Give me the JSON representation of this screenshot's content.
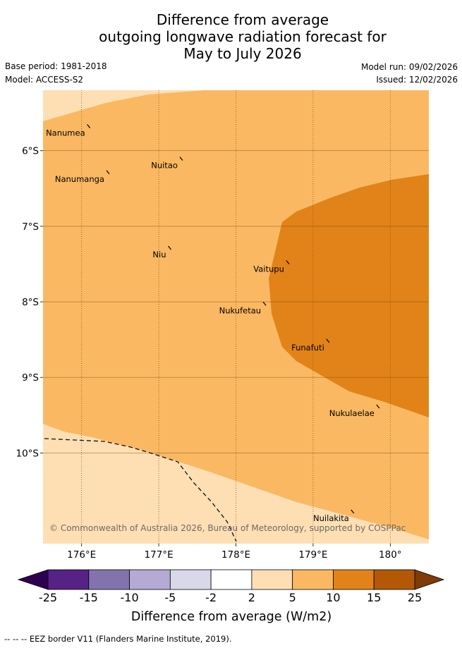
{
  "title": {
    "line1": "Difference from average",
    "line2": "outgoing longwave radiation forecast for",
    "line3": "May to July 2026"
  },
  "meta": {
    "base_period": "Base period: 1981-2018",
    "model": "Model: ACCESS-S2",
    "model_run": "Model run: 09/02/2026",
    "issued": "Issued: 12/02/2026"
  },
  "map": {
    "lon_range": [
      175.5,
      180.5
    ],
    "lat_range": [
      -11.2,
      -5.2
    ],
    "copyright": "© Commonwealth of Australia 2026, Bureau of Meteorology, supported by COSPPac",
    "x_ticks": [
      {
        "value": 176,
        "label": "176°E"
      },
      {
        "value": 177,
        "label": "177°E"
      },
      {
        "value": 178,
        "label": "178°E"
      },
      {
        "value": 179,
        "label": "179°E"
      },
      {
        "value": 180,
        "label": "180°"
      }
    ],
    "y_ticks": [
      {
        "value": -6,
        "label": "6°S"
      },
      {
        "value": -7,
        "label": "7°S"
      },
      {
        "value": -8,
        "label": "8°S"
      },
      {
        "value": -9,
        "label": "9°S"
      },
      {
        "value": -10,
        "label": "10°S"
      }
    ],
    "colors": {
      "band_2_5": "#fddfb3",
      "band_5_10": "#fbb862",
      "band_10_15": "#e18318",
      "grid": "#7a4a10"
    },
    "islands": [
      {
        "name": "Nanumea",
        "lon": 176.1,
        "lat": -5.68
      },
      {
        "name": "Nuitao",
        "lon": 177.3,
        "lat": -6.11
      },
      {
        "name": "Nanumanga",
        "lon": 176.35,
        "lat": -6.29
      },
      {
        "name": "Niu",
        "lon": 177.15,
        "lat": -7.29
      },
      {
        "name": "Vaitupu",
        "lon": 178.68,
        "lat": -7.48
      },
      {
        "name": "Nukufetau",
        "lon": 178.38,
        "lat": -8.03
      },
      {
        "name": "Funafuti",
        "lon": 179.2,
        "lat": -8.52
      },
      {
        "name": "Nukulaelae",
        "lon": 179.85,
        "lat": -9.39
      },
      {
        "name": "Nuilakita",
        "lon": 179.52,
        "lat": -10.78
      }
    ]
  },
  "colorbar": {
    "ticks": [
      "-25",
      "-15",
      "-10",
      "-5",
      "-2",
      "2",
      "5",
      "10",
      "15",
      "25"
    ],
    "colors": [
      "#562285",
      "#8273ae",
      "#b4aad4",
      "#d9d8ea",
      "#ffffff",
      "#fddfb3",
      "#fbb862",
      "#e18318",
      "#b35806"
    ],
    "under_color": "#2d0052",
    "over_color": "#7f3b08",
    "label": "Difference from average (W/m2)"
  },
  "footnote": "-- -- -- EEZ border V11 (Flanders Marine Institute, 2019)."
}
